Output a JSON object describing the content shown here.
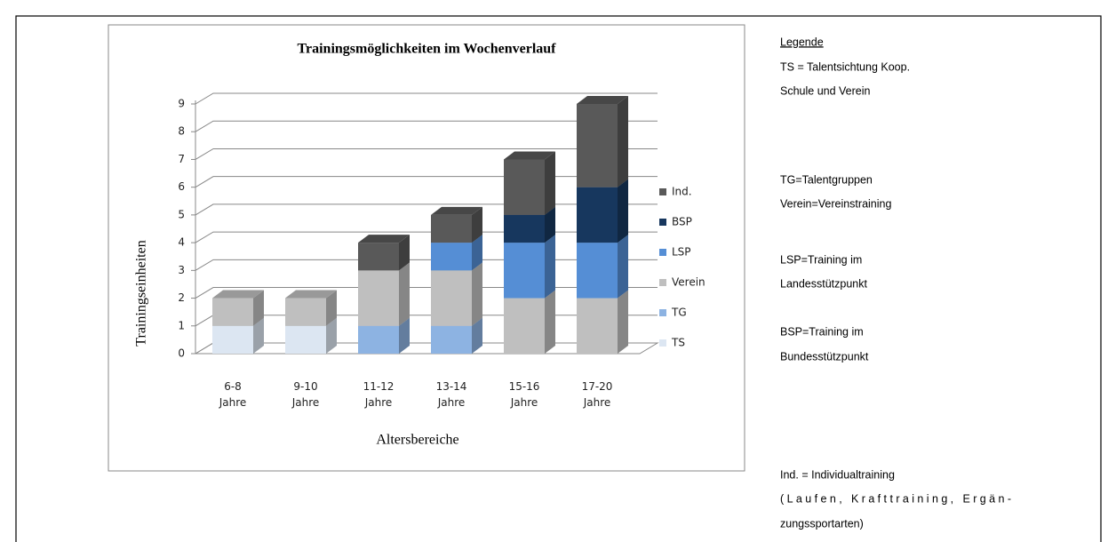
{
  "chart_data": {
    "type": "stacked_bar_3d",
    "title": "Trainingsmöglichkeiten im Wochenverlauf",
    "y_label": "Trainingseinheiten",
    "x_label": "Altersbereiche",
    "categories": [
      "6-8 Jahre",
      "9-10 Jahre",
      "11-12 Jahre",
      "13-14 Jahre",
      "15-16 Jahre",
      "17-20 Jahre"
    ],
    "series": [
      {
        "name": "TS",
        "color": "#dce6f2",
        "values": [
          1,
          1,
          0,
          0,
          0,
          0
        ]
      },
      {
        "name": "TG",
        "color": "#8db3e2",
        "values": [
          0,
          0,
          1,
          1,
          0,
          0
        ]
      },
      {
        "name": "Verein",
        "color": "#bfbfbf",
        "values": [
          1,
          1,
          2,
          2,
          2,
          2
        ]
      },
      {
        "name": "LSP",
        "color": "#558ed5",
        "values": [
          0,
          0,
          0,
          1,
          2,
          2
        ]
      },
      {
        "name": "BSP",
        "color": "#17375e",
        "values": [
          0,
          0,
          0,
          0,
          1,
          2
        ]
      },
      {
        "name": "Ind.",
        "color": "#595959",
        "values": [
          0,
          0,
          1,
          1,
          2,
          3
        ]
      }
    ],
    "ylim": [
      0,
      9
    ],
    "yticks": [
      0,
      1,
      2,
      3,
      4,
      5,
      6,
      7,
      8,
      9
    ],
    "grid": true,
    "legend": "right"
  },
  "legend_text": {
    "heading": "Legende",
    "lines": [
      "TS = Talentsichtung Koop.",
      "Schule und Verein",
      "TG=Talentgruppen",
      "Verein=Vereinstraining",
      "LSP=Training im",
      "Landesstützpunkt",
      "BSP=Training im",
      "Bundesstützpunkt",
      "Ind. = Individualtraining",
      "(Laufen, Krafttraining, Ergän-",
      "zungssportarten)"
    ]
  }
}
